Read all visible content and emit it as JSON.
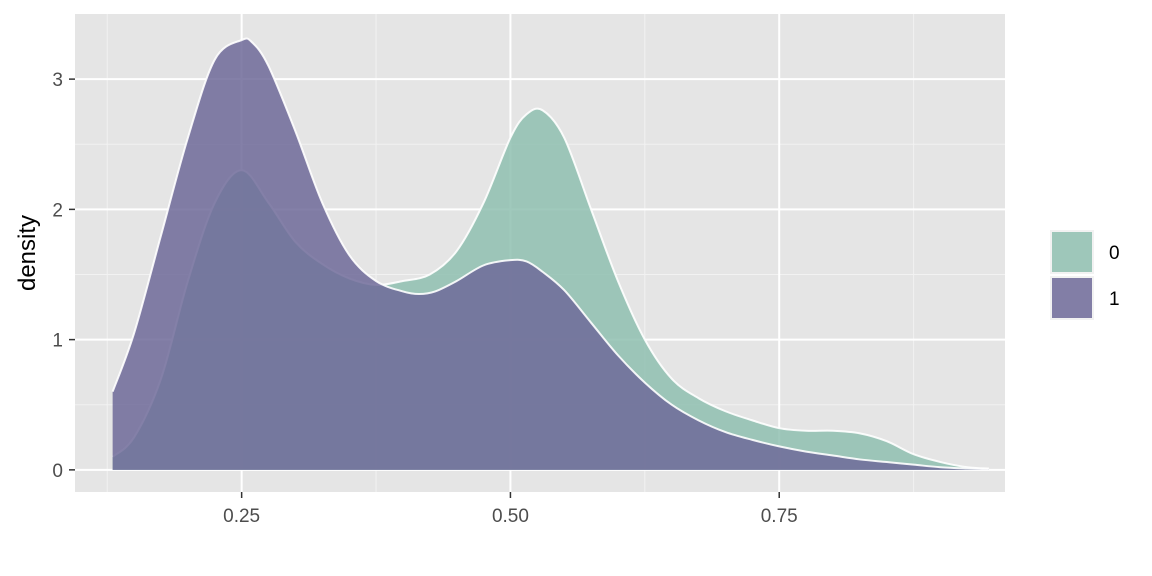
{
  "chart_data": {
    "type": "area",
    "title": "",
    "xlabel": "",
    "ylabel": "density",
    "xlim": [
      0.095,
      0.96
    ],
    "ylim": [
      -0.17,
      3.5
    ],
    "x_ticks": [
      0.25,
      0.5,
      0.75
    ],
    "x_tick_labels": [
      "0.25",
      "0.50",
      "0.75"
    ],
    "y_ticks": [
      0,
      1,
      2,
      3
    ],
    "y_tick_labels": [
      "0",
      "1",
      "2",
      "3"
    ],
    "x_minor_gridlines": [
      0.125,
      0.375,
      0.625,
      0.875
    ],
    "y_minor_gridlines": [
      0.5,
      1.5,
      2.5
    ],
    "grid": true,
    "panel_background": "#e5e5e5",
    "legend_position": "right",
    "series": [
      {
        "name": "0",
        "color": "#8fbfb0",
        "x": [
          0.13,
          0.15,
          0.175,
          0.2,
          0.225,
          0.25,
          0.275,
          0.3,
          0.325,
          0.35,
          0.375,
          0.4,
          0.425,
          0.45,
          0.475,
          0.5,
          0.515,
          0.53,
          0.55,
          0.575,
          0.6,
          0.625,
          0.65,
          0.675,
          0.7,
          0.725,
          0.75,
          0.775,
          0.8,
          0.825,
          0.85,
          0.875,
          0.9,
          0.925,
          0.945
        ],
        "values": [
          0.1,
          0.25,
          0.7,
          1.45,
          2.05,
          2.3,
          2.05,
          1.75,
          1.58,
          1.47,
          1.42,
          1.45,
          1.5,
          1.68,
          2.05,
          2.55,
          2.73,
          2.76,
          2.55,
          2.0,
          1.45,
          1.0,
          0.7,
          0.55,
          0.45,
          0.38,
          0.32,
          0.3,
          0.3,
          0.28,
          0.22,
          0.12,
          0.06,
          0.02,
          0.01
        ]
      },
      {
        "name": "1",
        "color": "#6f6a99",
        "x": [
          0.13,
          0.15,
          0.175,
          0.2,
          0.225,
          0.25,
          0.26,
          0.275,
          0.3,
          0.325,
          0.35,
          0.375,
          0.4,
          0.415,
          0.43,
          0.45,
          0.475,
          0.5,
          0.515,
          0.53,
          0.55,
          0.575,
          0.6,
          0.625,
          0.65,
          0.675,
          0.7,
          0.725,
          0.75,
          0.775,
          0.8,
          0.825,
          0.85,
          0.875,
          0.9,
          0.925,
          0.945
        ],
        "values": [
          0.6,
          1.05,
          1.8,
          2.55,
          3.15,
          3.3,
          3.28,
          3.1,
          2.6,
          2.05,
          1.65,
          1.45,
          1.37,
          1.35,
          1.37,
          1.45,
          1.57,
          1.61,
          1.6,
          1.52,
          1.38,
          1.13,
          0.88,
          0.67,
          0.5,
          0.38,
          0.29,
          0.23,
          0.18,
          0.14,
          0.11,
          0.08,
          0.06,
          0.04,
          0.02,
          0.01,
          0.005
        ]
      }
    ]
  }
}
